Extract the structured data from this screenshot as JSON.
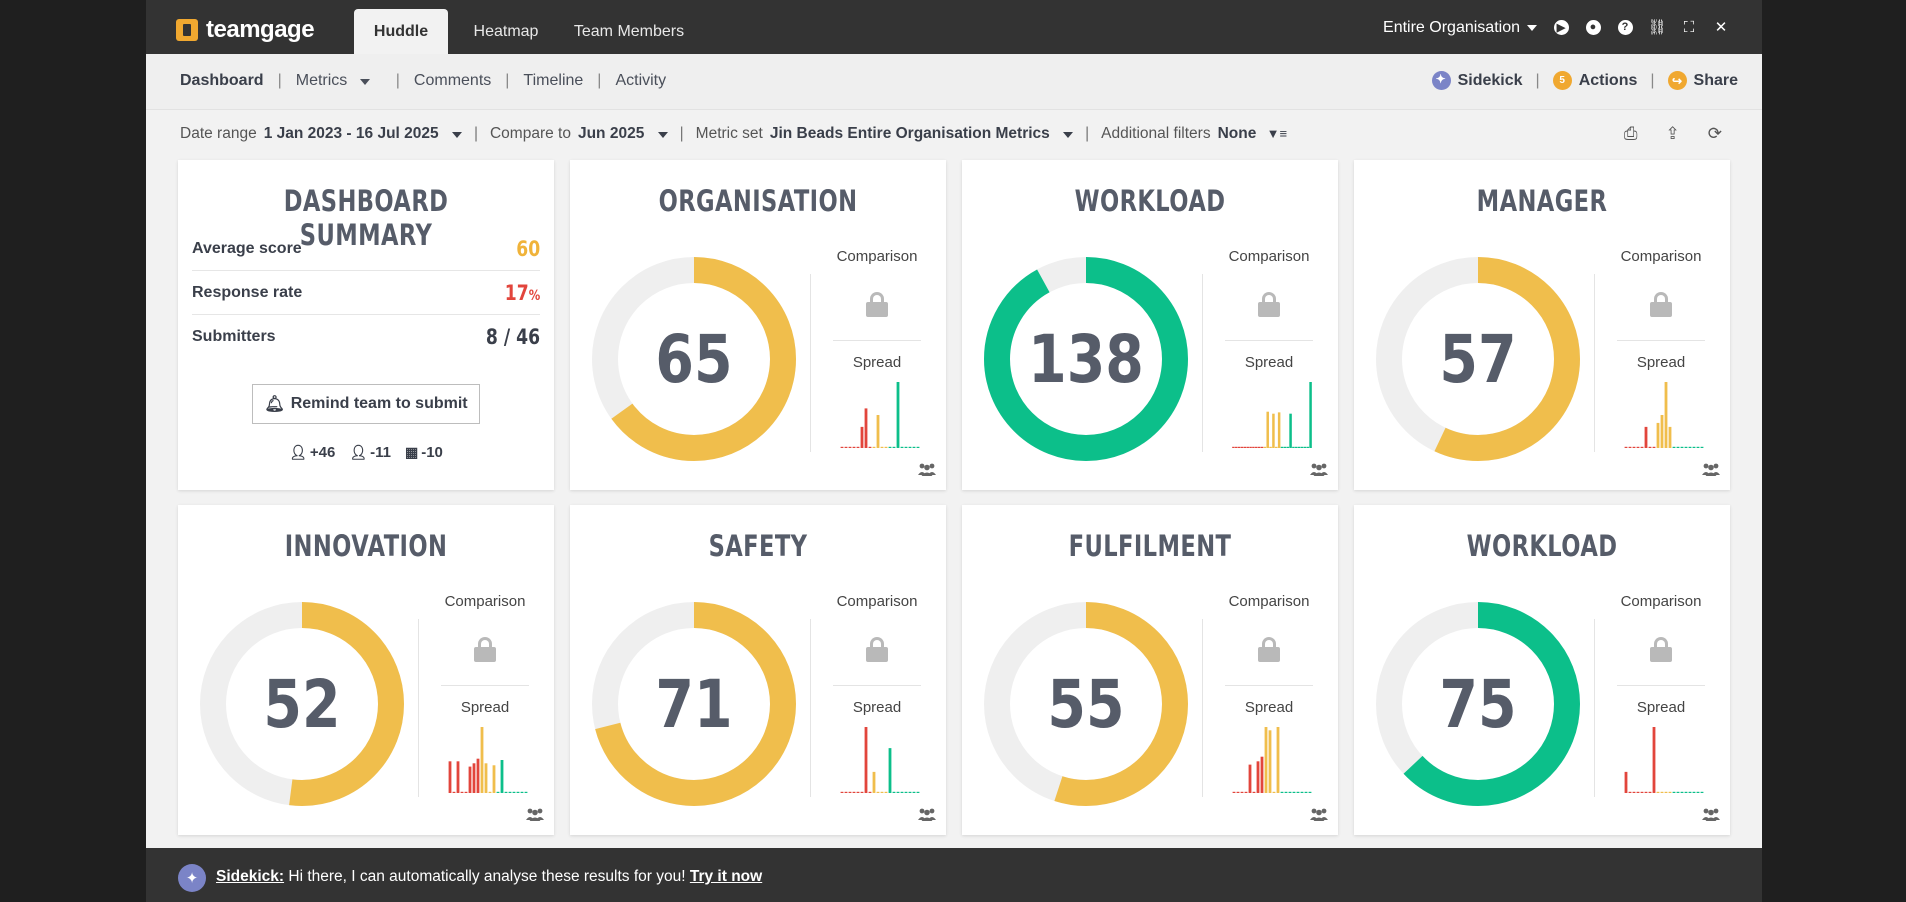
{
  "app": {
    "brand": "teamgage",
    "tabs": [
      "Huddle",
      "Heatmap",
      "Team Members"
    ],
    "active_tab": "Huddle",
    "org_select": "Entire Organisation",
    "top_icons": [
      "play-icon",
      "chat-icon",
      "help-icon",
      "link-icon",
      "fullscreen-icon",
      "close-icon"
    ]
  },
  "subnav": {
    "items": [
      "Dashboard",
      "Metrics",
      "Comments",
      "Timeline",
      "Activity"
    ],
    "active": "Dashboard",
    "sidekick": "Sidekick",
    "actions": "Actions",
    "actions_count": "5",
    "share": "Share"
  },
  "filters": {
    "date_label": "Date range",
    "date_value": "1 Jan 2023 - 16 Jul 2025",
    "compare_label": "Compare to",
    "compare_value": "Jun 2025",
    "metric_label": "Metric set",
    "metric_value": "Jin Beads Entire Organisation Metrics",
    "additional_label": "Additional filters",
    "additional_value": "None",
    "action_icons": [
      "print-icon",
      "export-icon",
      "refresh-icon"
    ]
  },
  "summary": {
    "title": "DASHBOARD SUMMARY",
    "rows": [
      {
        "label": "Average score",
        "value": "60",
        "color": "#f0b33a"
      },
      {
        "label": "Response rate",
        "value": "17",
        "suffix": "%",
        "color": "#e2453c"
      },
      {
        "label": "Submitters",
        "value": "8 / 46",
        "color": "#3a3f4a"
      }
    ],
    "remind_button": "Remind team to submit",
    "counts": [
      "+46",
      "-11",
      "-10"
    ]
  },
  "labels": {
    "comparison": "Comparison",
    "spread": "Spread"
  },
  "colors": {
    "yellow": "#f0be4c",
    "green": "#0cbf8a",
    "red": "#e2453c",
    "track": "#efefef"
  },
  "metrics": [
    {
      "title": "ORGANISATION",
      "score": "65",
      "fraction": 0.65,
      "color": "#f0be4c",
      "spread": [
        0,
        0,
        0,
        0,
        0,
        0.32,
        0.6,
        0,
        0,
        0.5,
        0,
        0,
        0,
        0,
        1,
        0,
        0,
        0,
        0,
        0
      ]
    },
    {
      "title": "WORKLOAD",
      "score": "138",
      "fraction": 0.92,
      "color": "#0cbf8a",
      "spread": [
        0,
        0,
        0,
        0,
        0,
        0,
        0,
        0,
        0,
        0,
        0,
        0,
        0.55,
        0,
        0.52,
        0,
        0.54,
        0,
        0,
        0,
        0.52,
        0,
        0,
        0,
        0,
        0,
        0,
        1
      ]
    },
    {
      "title": "MANAGER",
      "score": "57",
      "fraction": 0.57,
      "color": "#f0be4c",
      "spread": [
        0,
        0,
        0,
        0,
        0,
        0.32,
        0,
        0,
        0.38,
        0.5,
        1,
        0.32,
        0,
        0,
        0,
        0,
        0,
        0,
        0,
        0
      ]
    },
    {
      "title": "INNOVATION",
      "score": "52",
      "fraction": 0.52,
      "color": "#f0be4c",
      "spread": [
        0.48,
        0,
        0.48,
        0,
        0,
        0.4,
        0.45,
        0.52,
        1,
        0.45,
        0,
        0.42,
        0,
        0.5,
        0,
        0,
        0,
        0,
        0,
        0
      ]
    },
    {
      "title": "SAFETY",
      "score": "71",
      "fraction": 0.71,
      "color": "#f0be4c",
      "spread": [
        0,
        0,
        0,
        0,
        0,
        0,
        1,
        0,
        0.32,
        0,
        0,
        0,
        0.68,
        0,
        0,
        0,
        0,
        0,
        0,
        0
      ]
    },
    {
      "title": "FULFILMENT",
      "score": "55",
      "fraction": 0.55,
      "color": "#f0be4c",
      "spread": [
        0,
        0,
        0,
        0,
        0.43,
        0,
        0.48,
        0.55,
        1,
        0.95,
        0,
        1,
        0,
        0,
        0,
        0,
        0,
        0,
        0,
        0
      ]
    },
    {
      "title": "WORKLOAD",
      "score": "75",
      "fraction": 0.63,
      "color": "#0cbf8a",
      "spread": [
        0.32,
        0,
        0,
        0,
        0,
        0,
        0,
        1,
        0,
        0,
        0,
        0,
        0,
        0,
        0,
        0,
        0,
        0,
        0,
        0
      ]
    }
  ],
  "sidekick_banner": {
    "name": "Sidekick:",
    "message": "Hi there, I can automatically analyse these results for you!",
    "link": "Try it now"
  }
}
